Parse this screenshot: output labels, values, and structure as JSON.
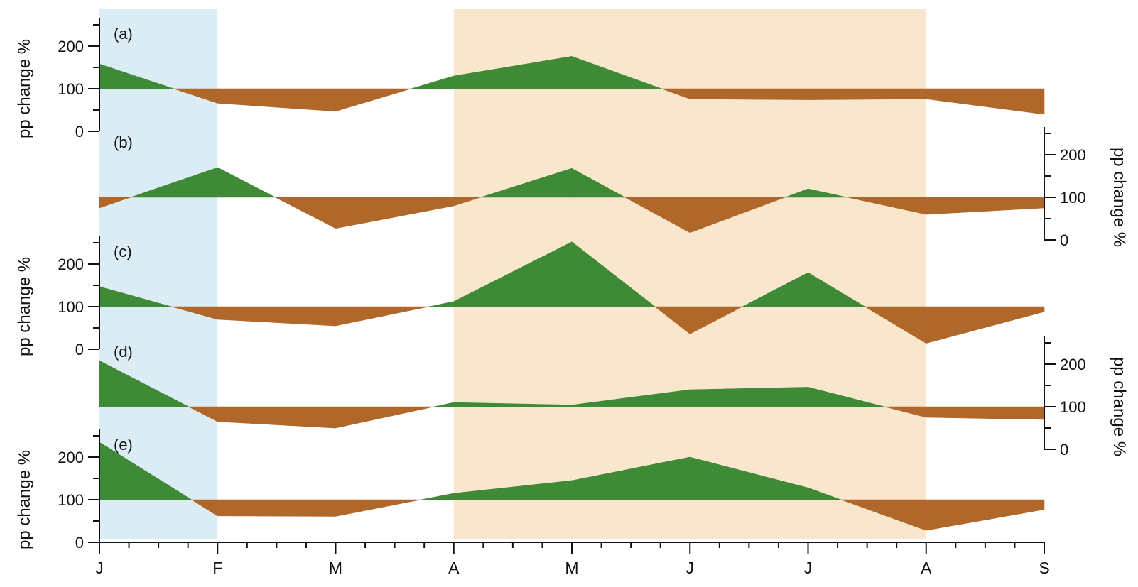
{
  "chart_data": {
    "type": "area",
    "x": [
      "J",
      "F",
      "M",
      "A",
      "M",
      "J",
      "J",
      "A",
      "S"
    ],
    "baseline": 100,
    "y_ticks": [
      0,
      100,
      200
    ],
    "ylabel": "pp change %",
    "colors": {
      "above": "#3f8a37",
      "below": "#b0672a",
      "winter_band": "#dcecf4",
      "summer_band": "#f8e7cc"
    },
    "shaded_periods": [
      {
        "from": "J",
        "to": "F",
        "color": "winter_band"
      },
      {
        "from": "A",
        "to": "A",
        "color": "summer_band"
      }
    ],
    "panels": [
      {
        "label": "(a)",
        "axis_side": "left",
        "values": [
          158,
          66,
          47,
          130,
          176,
          76,
          74,
          76,
          40
        ]
      },
      {
        "label": "(b)",
        "axis_side": "right",
        "values": [
          75,
          170,
          27,
          80,
          168,
          17,
          120,
          60,
          75
        ]
      },
      {
        "label": "(c)",
        "axis_side": "left",
        "values": [
          147,
          70,
          55,
          112,
          252,
          36,
          180,
          14,
          88
        ]
      },
      {
        "label": "(d)",
        "axis_side": "right",
        "values": [
          208,
          65,
          50,
          110,
          104,
          140,
          146,
          75,
          70
        ]
      },
      {
        "label": "(e)",
        "axis_side": "left",
        "values": [
          235,
          62,
          61,
          115,
          145,
          200,
          128,
          28,
          77
        ]
      }
    ]
  }
}
